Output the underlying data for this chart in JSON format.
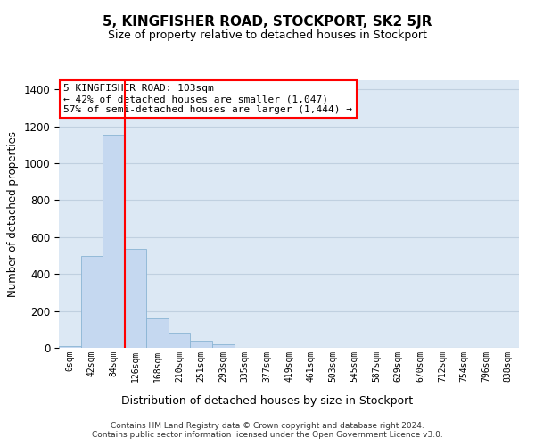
{
  "title": "5, KINGFISHER ROAD, STOCKPORT, SK2 5JR",
  "subtitle": "Size of property relative to detached houses in Stockport",
  "xlabel": "Distribution of detached houses by size in Stockport",
  "ylabel": "Number of detached properties",
  "bar_labels": [
    "0sqm",
    "42sqm",
    "84sqm",
    "126sqm",
    "168sqm",
    "210sqm",
    "251sqm",
    "293sqm",
    "335sqm",
    "377sqm",
    "419sqm",
    "461sqm",
    "503sqm",
    "545sqm",
    "587sqm",
    "629sqm",
    "670sqm",
    "712sqm",
    "754sqm",
    "796sqm",
    "838sqm"
  ],
  "bar_values": [
    10,
    500,
    1155,
    535,
    160,
    83,
    37,
    18,
    0,
    0,
    0,
    0,
    0,
    0,
    0,
    0,
    0,
    0,
    0,
    0,
    0
  ],
  "bar_color": "#c5d8f0",
  "bar_edge_color": "#8ab4d4",
  "grid_color": "#c0d0e0",
  "background_color": "#dce8f4",
  "annotation_line1": "5 KINGFISHER ROAD: 103sqm",
  "annotation_line2": "← 42% of detached houses are smaller (1,047)",
  "annotation_line3": "57% of semi-detached houses are larger (1,444) →",
  "red_line_bar_index": 2,
  "ylim": [
    0,
    1450
  ],
  "yticks": [
    0,
    200,
    400,
    600,
    800,
    1000,
    1200,
    1400
  ],
  "footnote1": "Contains HM Land Registry data © Crown copyright and database right 2024.",
  "footnote2": "Contains public sector information licensed under the Open Government Licence v3.0."
}
